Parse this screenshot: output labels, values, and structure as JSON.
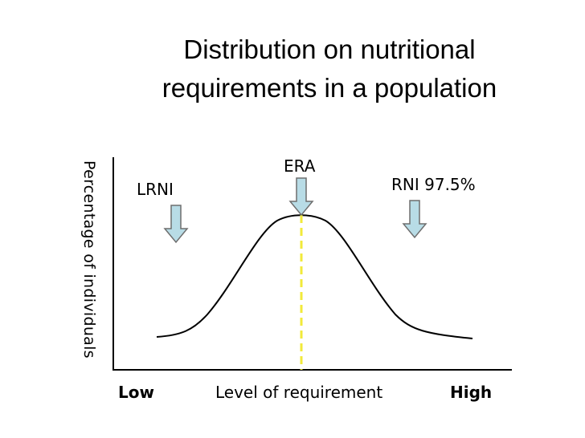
{
  "title": {
    "line1": "Distribution on nutritional",
    "line2": "requirements in a population"
  },
  "markers": {
    "lrni": "LRNI",
    "era": "ERA",
    "rni": "RNI 97.5%"
  },
  "axes": {
    "ylabel": "Percentage of individuals",
    "xlabel": "Level of requirement",
    "x_low": "Low",
    "x_high": "High"
  },
  "colors": {
    "arrow_fill": "#b8dce6",
    "arrow_stroke": "#6e6e6e",
    "mean_line": "#f2ea3a"
  }
}
